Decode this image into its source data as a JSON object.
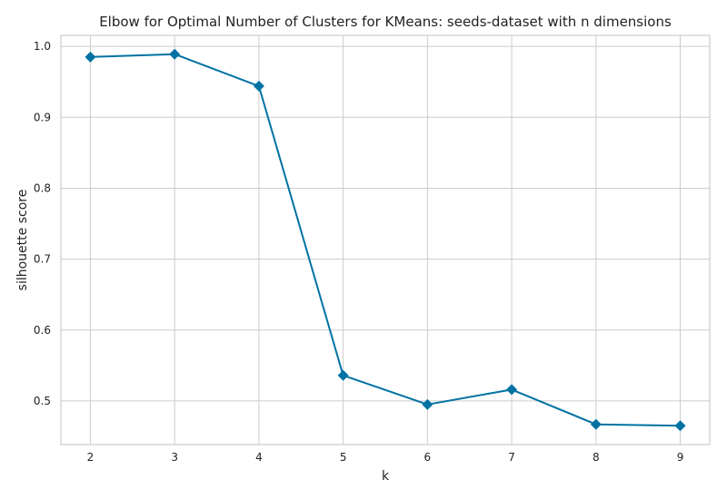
{
  "chart_data": {
    "type": "line",
    "title": "Elbow for Optimal Number of Clusters for KMeans: seeds-dataset with n dimensions",
    "xlabel": "k",
    "ylabel": "silhouette score",
    "x": [
      2,
      3,
      4,
      5,
      6,
      7,
      8,
      9
    ],
    "series": [
      {
        "values": [
          0.985,
          0.989,
          0.944,
          0.536,
          0.495,
          0.516,
          0.467,
          0.465
        ],
        "color": "#0072a3",
        "marker": "diamond"
      }
    ],
    "xticks": [
      "2",
      "3",
      "4",
      "5",
      "6",
      "7",
      "8",
      "9"
    ],
    "yticks": [
      "0.5",
      "0.6",
      "0.7",
      "0.8",
      "0.9",
      "1.0"
    ],
    "xlim": [
      1.65,
      9.35
    ],
    "ylim": [
      0.4385,
      1.0155
    ],
    "grid": true,
    "legend": "none"
  }
}
